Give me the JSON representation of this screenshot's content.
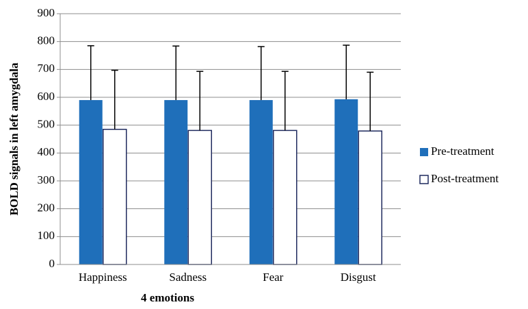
{
  "chart_data": {
    "type": "bar",
    "x_label": "4 emotions",
    "y_label": "BOLD signals in left amygdala",
    "categories": [
      "Happiness",
      "Sadness",
      "Fear",
      "Disgust"
    ],
    "series": [
      {
        "name": "Pre-treatment",
        "color": "#1f6fba",
        "values": [
          590,
          590,
          590,
          593
        ],
        "errors": [
          195,
          194,
          192,
          194
        ]
      },
      {
        "name": "Post-treatment",
        "color": "#ffffff",
        "values": [
          485,
          481,
          481,
          479
        ],
        "errors": [
          212,
          212,
          212,
          211
        ]
      }
    ],
    "ylim": [
      0,
      900
    ],
    "yticks": [
      0,
      100,
      200,
      300,
      400,
      500,
      600,
      700,
      800,
      900
    ],
    "grid": true,
    "legend": "right"
  }
}
